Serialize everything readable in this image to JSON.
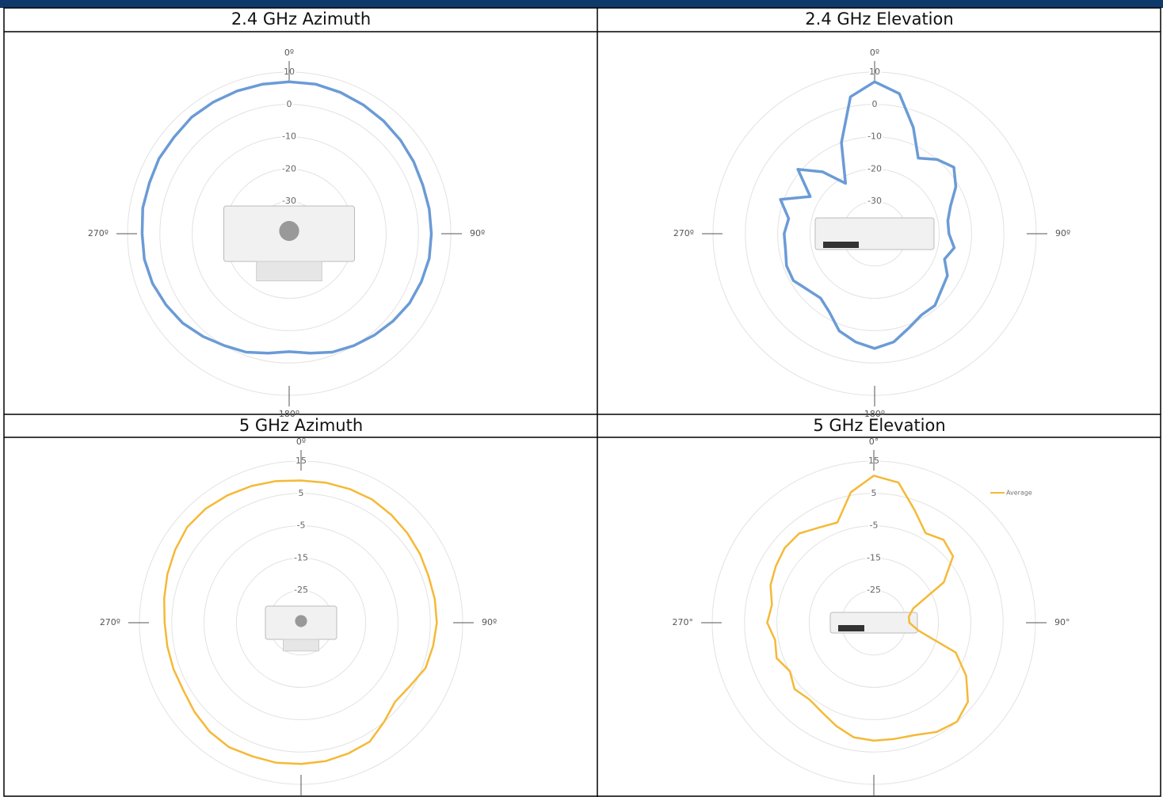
{
  "chart_data": [
    {
      "type": "polar",
      "title": "2.4 GHz Azimuth",
      "x": [
        0,
        10,
        20,
        30,
        40,
        50,
        60,
        70,
        80,
        90,
        100,
        110,
        120,
        130,
        140,
        150,
        160,
        170,
        180,
        190,
        200,
        210,
        220,
        230,
        240,
        250,
        260,
        270,
        280,
        290,
        300,
        310,
        320,
        330,
        340,
        350
      ],
      "values": [
        7,
        7,
        6.5,
        6,
        5.5,
        5,
        4.5,
        4,
        4,
        4,
        4,
        3.5,
        3,
        2,
        1,
        0,
        -1,
        -2.5,
        -3.5,
        -2.5,
        -1,
        0,
        1.5,
        3,
        4,
        5,
        5.5,
        5.5,
        6,
        6,
        6.5,
        6.5,
        7,
        7,
        7,
        7
      ],
      "color": "#6b9bd6",
      "rlim": [
        -40,
        10
      ],
      "rticks": [
        10,
        0,
        -10,
        -20,
        -30
      ],
      "angle_ticks": [
        {
          "value": 0,
          "label": "0º"
        },
        {
          "value": 90,
          "label": "90º"
        },
        {
          "value": 180,
          "label": "180º"
        },
        {
          "value": 270,
          "label": "270º"
        }
      ]
    },
    {
      "type": "polar",
      "title": "2.4 GHz Elevation",
      "x": [
        0,
        10,
        20,
        30,
        40,
        50,
        60,
        70,
        80,
        90,
        100,
        110,
        120,
        130,
        140,
        150,
        160,
        170,
        180,
        190,
        200,
        210,
        220,
        230,
        240,
        250,
        260,
        270,
        280,
        290,
        300,
        310,
        320,
        330,
        340,
        350
      ],
      "values": [
        7,
        4,
        -5,
        -13,
        -10,
        -8,
        -11,
        -15,
        -17,
        -17,
        -15,
        -17,
        -14,
        -13,
        -11,
        -11,
        -9,
        -6,
        -4.5,
        -6,
        -8,
        -12,
        -14,
        -13,
        -11,
        -11,
        -12,
        -12,
        -13,
        -9,
        -17,
        -9,
        -15,
        -22,
        -10,
        3
      ],
      "color": "#6b9bd6",
      "rlim": [
        -40,
        10
      ],
      "rticks": [
        10,
        0,
        -10,
        -20,
        -30
      ],
      "angle_ticks": [
        {
          "value": 0,
          "label": "0º"
        },
        {
          "value": 90,
          "label": "90º"
        },
        {
          "value": 180,
          "label": "180º"
        },
        {
          "value": 270,
          "label": "270º"
        }
      ]
    },
    {
      "type": "polar",
      "title": "5 GHz Azimuth",
      "x": [
        0,
        10,
        20,
        30,
        40,
        50,
        60,
        70,
        80,
        90,
        100,
        110,
        120,
        130,
        140,
        150,
        160,
        170,
        180,
        190,
        200,
        210,
        220,
        230,
        240,
        250,
        260,
        270,
        280,
        290,
        300,
        310,
        320,
        330,
        340,
        350
      ],
      "values": [
        9,
        9,
        9,
        9,
        8.5,
        8,
        7.5,
        7,
        7,
        7,
        6.5,
        6,
        4,
        3,
        5,
        7.5,
        8,
        8.5,
        8.7,
        9,
        9,
        9.5,
        9,
        8,
        7,
        7,
        7,
        7.2,
        8,
        9,
        10,
        11,
        11,
        10.5,
        10,
        9.5
      ],
      "color": "#f5b937",
      "rlim": [
        -35,
        15
      ],
      "rticks": [
        15,
        5,
        -5,
        -15,
        -25
      ],
      "angle_ticks": [
        {
          "value": 0,
          "label": "0º"
        },
        {
          "value": 90,
          "label": "90º"
        },
        {
          "value": 180,
          "label": "180º"
        },
        {
          "value": 270,
          "label": "270º"
        }
      ]
    },
    {
      "type": "polar",
      "title": "5 GHz Elevation",
      "x": [
        0,
        10,
        20,
        30,
        40,
        50,
        60,
        70,
        80,
        90,
        100,
        110,
        120,
        130,
        140,
        150,
        160,
        170,
        180,
        190,
        200,
        210,
        220,
        230,
        240,
        250,
        260,
        270,
        280,
        290,
        300,
        310,
        320,
        330,
        340,
        350
      ],
      "series": [
        {
          "name": "Average",
          "color": "#f5b937",
          "values": [
            10.5,
            9,
            2,
            -3,
            -1.5,
            -3,
            -10,
            -22,
            -24,
            -24,
            -21,
            -8,
            -2,
            3,
            5,
            4,
            2,
            1.5,
            1.5,
            1,
            -1,
            -3,
            -4,
            -3,
            -5,
            -3,
            -4,
            -2,
            -3,
            -1,
            0,
            1,
            1,
            -1,
            -2,
            6
          ]
        }
      ],
      "legend": "upper right",
      "rlim": [
        -35,
        15
      ],
      "rticks": [
        15,
        5,
        -5,
        -15,
        -25
      ],
      "angle_ticks": [
        {
          "value": 0,
          "label": "0°"
        },
        {
          "value": 90,
          "label": "90°"
        },
        {
          "value": 180,
          "label": "180°"
        },
        {
          "value": 270,
          "label": "270°"
        }
      ]
    }
  ]
}
